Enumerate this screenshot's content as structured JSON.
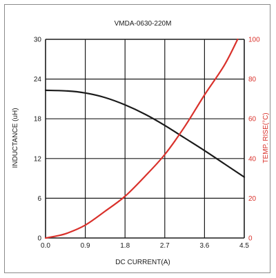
{
  "chart_data": {
    "type": "line",
    "title": "VMDA-0630-220M",
    "xlabel": "DC CURRENT(A)",
    "ylabel_left": "INDUCTANCE (uH)",
    "ylabel_right": "TEMP. RISE(°C)",
    "x_ticks": [
      "0.0",
      "0.9",
      "1.8",
      "2.7",
      "3.6",
      "4.5"
    ],
    "y_left_ticks": [
      "0",
      "6",
      "12",
      "18",
      "24",
      "30"
    ],
    "y_right_ticks": [
      "0",
      "20",
      "40",
      "60",
      "80",
      "100"
    ],
    "xlim": [
      0,
      4.5
    ],
    "ylim_left": [
      0,
      30
    ],
    "ylim_right": [
      0,
      100
    ],
    "grid": true,
    "series": [
      {
        "axis": "left",
        "color": "#1a1a1a",
        "points": [
          [
            0.0,
            22.3
          ],
          [
            0.5,
            22.2
          ],
          [
            0.9,
            21.9
          ],
          [
            1.35,
            21.2
          ],
          [
            1.8,
            20.1
          ],
          [
            2.25,
            18.7
          ],
          [
            2.7,
            17.0
          ],
          [
            3.15,
            15.1
          ],
          [
            3.6,
            13.2
          ],
          [
            4.05,
            11.2
          ],
          [
            4.5,
            9.2
          ]
        ]
      },
      {
        "axis": "right",
        "color": "#d9312b",
        "points": [
          [
            0.0,
            0
          ],
          [
            0.25,
            1
          ],
          [
            0.5,
            2.5
          ],
          [
            0.9,
            6.5
          ],
          [
            1.35,
            13.5
          ],
          [
            1.8,
            21
          ],
          [
            2.25,
            31
          ],
          [
            2.7,
            42
          ],
          [
            3.15,
            56
          ],
          [
            3.6,
            72
          ],
          [
            4.05,
            87
          ],
          [
            4.35,
            100
          ]
        ]
      }
    ],
    "colors": {
      "left_axis_text": "#1a1a1a",
      "right_axis_text": "#d9312b",
      "grid": "#1a1a1a"
    }
  }
}
